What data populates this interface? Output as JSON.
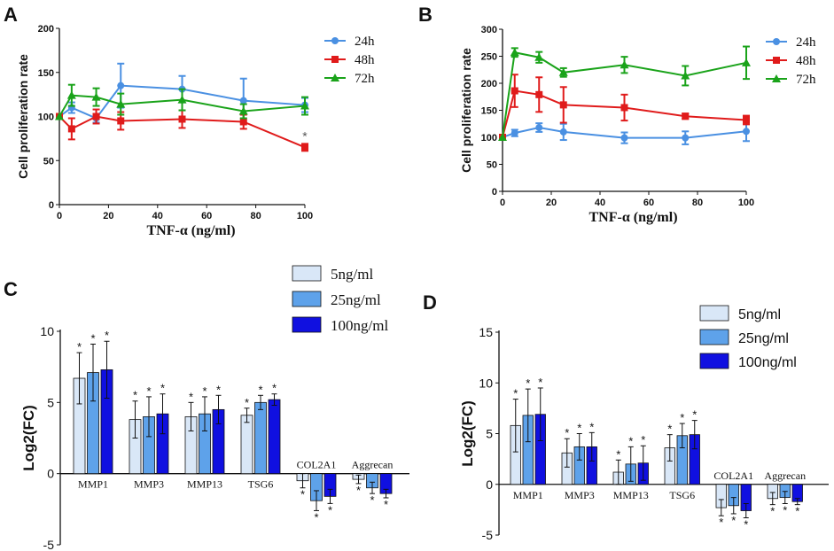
{
  "colors": {
    "h24": "#4a90e2",
    "h48": "#e01b1b",
    "h72": "#1aa31a",
    "bar5": "#d9e7f7",
    "bar25": "#5ea2ea",
    "bar100": "#1010e0"
  },
  "chart_data": [
    {
      "panel": "A",
      "type": "line",
      "xlabel": "TNF-α (ng/ml)",
      "ylabel": "Cell proliferation rate",
      "xlim": [
        0,
        100
      ],
      "ylim": [
        0,
        200
      ],
      "xticks": [
        0,
        20,
        40,
        60,
        80,
        100
      ],
      "yticks": [
        0,
        50,
        100,
        150,
        200
      ],
      "x": [
        0,
        5,
        15,
        25,
        50,
        75,
        100
      ],
      "series": [
        {
          "name": "24h",
          "marker": "circle",
          "values": [
            100,
            110,
            98,
            135,
            131,
            118,
            113
          ],
          "errors": [
            0,
            6,
            5,
            25,
            15,
            25,
            8
          ]
        },
        {
          "name": "48h",
          "marker": "square",
          "values": [
            100,
            86,
            100,
            95,
            97,
            94,
            65
          ],
          "errors": [
            0,
            12,
            8,
            10,
            10,
            8,
            4
          ]
        },
        {
          "name": "72h",
          "marker": "triangle",
          "values": [
            100,
            124,
            122,
            114,
            119,
            106,
            112
          ],
          "errors": [
            0,
            12,
            10,
            12,
            12,
            8,
            10
          ]
        }
      ],
      "annotations": [
        {
          "x": 100,
          "series": "48h",
          "text": "*"
        }
      ]
    },
    {
      "panel": "B",
      "type": "line",
      "xlabel": "TNF-α (ng/ml)",
      "ylabel": "Cell proliferation rate",
      "xlim": [
        0,
        100
      ],
      "ylim": [
        0,
        300
      ],
      "xticks": [
        0,
        20,
        40,
        60,
        80,
        100
      ],
      "yticks": [
        0,
        50,
        100,
        150,
        200,
        250,
        300
      ],
      "x": [
        0,
        5,
        15,
        25,
        50,
        75,
        100
      ],
      "series": [
        {
          "name": "24h",
          "marker": "circle",
          "values": [
            100,
            108,
            118,
            110,
            99,
            99,
            111
          ],
          "errors": [
            0,
            6,
            8,
            15,
            10,
            12,
            18
          ]
        },
        {
          "name": "48h",
          "marker": "square",
          "values": [
            100,
            186,
            179,
            160,
            155,
            139,
            132
          ],
          "errors": [
            0,
            30,
            32,
            33,
            24,
            5,
            8
          ]
        },
        {
          "name": "72h",
          "marker": "triangle",
          "values": [
            100,
            257,
            248,
            220,
            234,
            214,
            238
          ],
          "errors": [
            0,
            8,
            10,
            8,
            15,
            18,
            30
          ]
        }
      ]
    },
    {
      "panel": "C",
      "type": "bar",
      "ylabel": "Log2(FC)",
      "ylim": [
        -5,
        10
      ],
      "yticks": [
        -5,
        0,
        5,
        10
      ],
      "categories": [
        "MMP1",
        "MMP3",
        "MMP13",
        "TSG6",
        "COL2A1",
        "Aggrecan"
      ],
      "series": [
        {
          "name": "5ng/ml",
          "values": [
            6.7,
            3.8,
            4.0,
            4.1,
            -0.5,
            -0.4
          ],
          "errors": [
            1.8,
            1.3,
            1.0,
            0.5,
            0.5,
            0.3
          ]
        },
        {
          "name": "25ng/ml",
          "values": [
            7.1,
            4.0,
            4.2,
            5.0,
            -1.9,
            -1.0
          ],
          "errors": [
            2.0,
            1.4,
            1.2,
            0.5,
            0.7,
            0.4
          ]
        },
        {
          "name": "100ng/ml",
          "values": [
            7.3,
            4.2,
            4.5,
            5.2,
            -1.6,
            -1.4
          ],
          "errors": [
            2.0,
            1.4,
            1.0,
            0.4,
            0.5,
            0.3
          ]
        }
      ],
      "annotation": "*"
    },
    {
      "panel": "D",
      "type": "bar",
      "ylabel": "Log2(FC)",
      "ylim": [
        -5,
        15
      ],
      "yticks": [
        -5,
        0,
        5,
        10,
        15
      ],
      "categories": [
        "MMP1",
        "MMP3",
        "MMP13",
        "TSG6",
        "COL2A1",
        "Aggrecan"
      ],
      "series": [
        {
          "name": "5ng/ml",
          "values": [
            5.8,
            3.1,
            1.2,
            3.6,
            -2.3,
            -1.4
          ],
          "errors": [
            2.6,
            1.4,
            1.2,
            1.3,
            0.8,
            0.6
          ]
        },
        {
          "name": "25ng/ml",
          "values": [
            6.8,
            3.7,
            2.0,
            4.8,
            -2.1,
            -1.3
          ],
          "errors": [
            2.6,
            1.3,
            1.7,
            1.2,
            0.8,
            0.6
          ]
        },
        {
          "name": "100ng/ml",
          "values": [
            6.9,
            3.7,
            2.1,
            4.9,
            -2.6,
            -1.7
          ],
          "errors": [
            2.6,
            1.4,
            1.7,
            1.4,
            0.7,
            0.3
          ]
        }
      ],
      "annotation": "*"
    }
  ]
}
